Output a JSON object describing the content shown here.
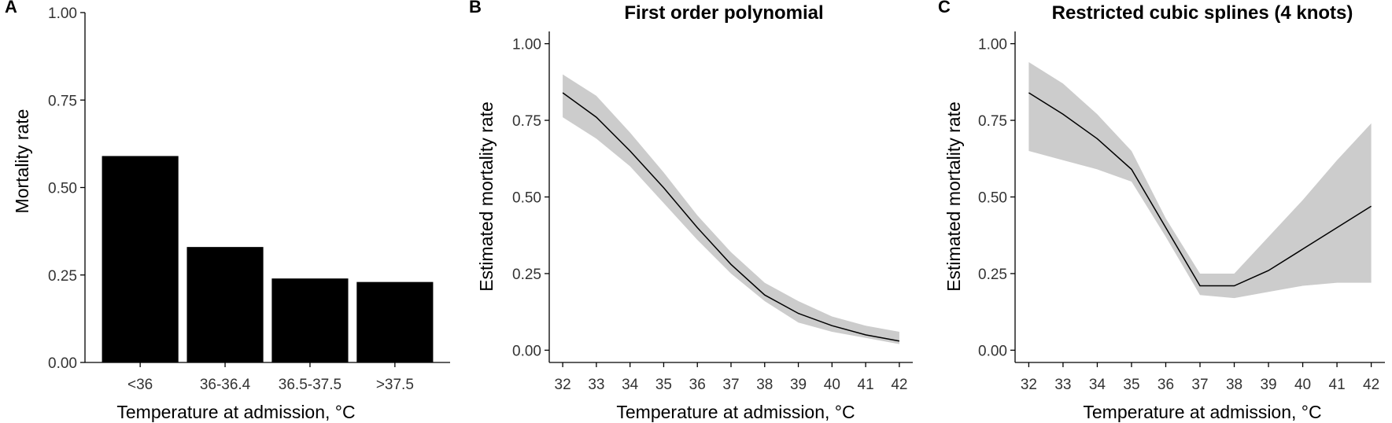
{
  "chart_data": [
    {
      "panel": "A",
      "type": "bar",
      "title": "",
      "categories": [
        "<36",
        "36-36.4",
        "36.5-37.5",
        ">37.5"
      ],
      "values": [
        0.59,
        0.33,
        0.24,
        0.23
      ],
      "xlabel": "Temperature at admission, °C",
      "ylabel": "Mortality rate",
      "ylim": [
        0,
        1.0
      ],
      "yticks": [
        "0.00",
        "0.25",
        "0.50",
        "0.75",
        "1.00"
      ],
      "bar_color": "#000000",
      "grid": false
    },
    {
      "panel": "B",
      "type": "line",
      "title": "First order polynomial",
      "x": [
        32,
        33,
        34,
        35,
        36,
        37,
        38,
        39,
        40,
        41,
        42
      ],
      "y": [
        0.84,
        0.76,
        0.65,
        0.53,
        0.4,
        0.28,
        0.18,
        0.12,
        0.08,
        0.05,
        0.03
      ],
      "ci_lower": [
        0.76,
        0.69,
        0.6,
        0.48,
        0.36,
        0.25,
        0.16,
        0.09,
        0.06,
        0.04,
        0.02
      ],
      "ci_upper": [
        0.9,
        0.83,
        0.71,
        0.58,
        0.44,
        0.32,
        0.22,
        0.16,
        0.11,
        0.08,
        0.06
      ],
      "xlabel": "Temperature at admission, °C",
      "ylabel": "Estimated mortality rate",
      "xlim": [
        31.6,
        42.4
      ],
      "ylim": [
        -0.04,
        1.04
      ],
      "xticks": [
        "32",
        "33",
        "34",
        "35",
        "36",
        "37",
        "38",
        "39",
        "40",
        "41",
        "42"
      ],
      "yticks": [
        "0.00",
        "0.25",
        "0.50",
        "0.75",
        "1.00"
      ],
      "line_color": "#000000",
      "band_color": "#cccccc",
      "grid": false
    },
    {
      "panel": "C",
      "type": "line",
      "title": "Restricted cubic splines (4 knots)",
      "x": [
        32,
        33,
        34,
        35,
        36,
        37,
        38,
        39,
        40,
        41,
        42
      ],
      "y": [
        0.84,
        0.77,
        0.69,
        0.59,
        0.4,
        0.21,
        0.21,
        0.26,
        0.33,
        0.4,
        0.47
      ],
      "ci_lower": [
        0.65,
        0.62,
        0.59,
        0.55,
        0.37,
        0.18,
        0.17,
        0.19,
        0.21,
        0.22,
        0.22
      ],
      "ci_upper": [
        0.94,
        0.87,
        0.77,
        0.65,
        0.43,
        0.25,
        0.25,
        0.37,
        0.49,
        0.62,
        0.74
      ],
      "xlabel": "Temperature at admission, °C",
      "ylabel": "Estimated mortality rate",
      "xlim": [
        31.6,
        42.4
      ],
      "ylim": [
        -0.04,
        1.04
      ],
      "xticks": [
        "32",
        "33",
        "34",
        "35",
        "36",
        "37",
        "38",
        "39",
        "40",
        "41",
        "42"
      ],
      "yticks": [
        "0.00",
        "0.25",
        "0.50",
        "0.75",
        "1.00"
      ],
      "line_color": "#000000",
      "band_color": "#cccccc",
      "grid": false
    }
  ]
}
